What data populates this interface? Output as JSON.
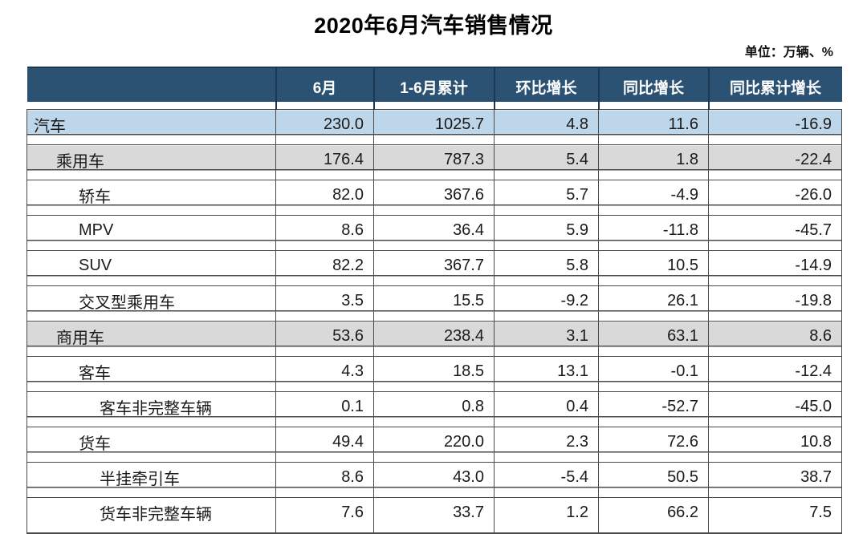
{
  "title": "2020年6月汽车销售情况",
  "unit_note": "单位：万辆、%",
  "colors": {
    "header_bg": "#2B5173",
    "header_separator": "#1C3850",
    "header_text": "#FFFFFF",
    "row_highlight_blue": "#BDD6EA",
    "row_highlight_gray": "#D9D9D9",
    "grid_line": "#4A4A4A",
    "body_text": "#1A1A1A"
  },
  "chart_data": {
    "type": "table",
    "title": "2020年6月汽车销售情况",
    "unit": "万辆、%",
    "columns": [
      "",
      "6月",
      "1-6月累计",
      "环比增长",
      "同比增长",
      "同比累计增长"
    ],
    "rows": [
      {
        "label": "汽车",
        "indent": 1,
        "emphasis": "blue",
        "values": [
          "230.0",
          "1025.7",
          "4.8",
          "11.6",
          "-16.9"
        ]
      },
      {
        "label": "乘用车",
        "indent": 2,
        "emphasis": "gray",
        "values": [
          "176.4",
          "787.3",
          "5.4",
          "1.8",
          "-22.4"
        ]
      },
      {
        "label": "轿车",
        "indent": 3,
        "emphasis": "white",
        "values": [
          "82.0",
          "367.6",
          "5.7",
          "-4.9",
          "-26.0"
        ]
      },
      {
        "label": "MPV",
        "indent": 3,
        "emphasis": "white",
        "values": [
          "8.6",
          "36.4",
          "5.9",
          "-11.8",
          "-45.7"
        ]
      },
      {
        "label": "SUV",
        "indent": 3,
        "emphasis": "white",
        "values": [
          "82.2",
          "367.7",
          "5.8",
          "10.5",
          "-14.9"
        ]
      },
      {
        "label": "交叉型乘用车",
        "indent": 3,
        "emphasis": "white",
        "values": [
          "3.5",
          "15.5",
          "-9.2",
          "26.1",
          "-19.8"
        ]
      },
      {
        "label": "商用车",
        "indent": 2,
        "emphasis": "gray",
        "values": [
          "53.6",
          "238.4",
          "3.1",
          "63.1",
          "8.6"
        ]
      },
      {
        "label": "客车",
        "indent": 3,
        "emphasis": "white",
        "values": [
          "4.3",
          "18.5",
          "13.1",
          "-0.1",
          "-12.4"
        ]
      },
      {
        "label": "客车非完整车辆",
        "indent": 4,
        "emphasis": "white",
        "values": [
          "0.1",
          "0.8",
          "0.4",
          "-52.7",
          "-45.0"
        ]
      },
      {
        "label": "货车",
        "indent": 3,
        "emphasis": "white",
        "values": [
          "49.4",
          "220.0",
          "2.3",
          "72.6",
          "10.8"
        ]
      },
      {
        "label": "半挂牵引车",
        "indent": 4,
        "emphasis": "white",
        "values": [
          "8.6",
          "43.0",
          "-5.4",
          "50.5",
          "38.7"
        ]
      },
      {
        "label": "货车非完整车辆",
        "indent": 4,
        "emphasis": "white",
        "values": [
          "7.6",
          "33.7",
          "1.2",
          "66.2",
          "7.5"
        ]
      }
    ]
  }
}
